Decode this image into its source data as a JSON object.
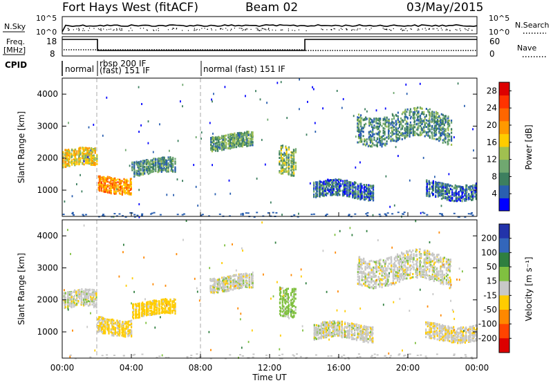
{
  "header": {
    "station": "Fort Hays West (fitACF)",
    "beam": "Beam 02",
    "date": "03/May/2015"
  },
  "top_panels": {
    "nsky_label": "N.Sky",
    "nsearch_label": "N.Search",
    "freq_label_1": "Freq.",
    "freq_label_2": "[MHz]",
    "nave_label": "Nave",
    "cpid_label": "CPID",
    "left_ticks_counts": [
      "10^5",
      "10^0"
    ],
    "right_ticks_counts": [
      "10^5",
      "10^0"
    ],
    "freq_ticks": [
      "18",
      "8"
    ],
    "nave_ticks": [
      "60",
      "0"
    ],
    "cpid_segments": [
      {
        "label": "normal",
        "start_hour": 0,
        "end_hour": 2
      },
      {
        "label": "rbsp 200 IF",
        "label2": "(fast) 151 IF",
        "start_hour": 2,
        "end_hour": 8
      },
      {
        "label": "normal (fast) 151 IF",
        "start_hour": 8,
        "end_hour": 24
      }
    ]
  },
  "chart_data": [
    {
      "type": "heatmap",
      "name": "power",
      "ylabel": "Slant Range [km]",
      "yticks": [
        "1000",
        "2000",
        "3000",
        "4000"
      ],
      "ylim": [
        180,
        4500
      ],
      "colorbar_label": "Power [dB]",
      "colorbar_ticks": [
        "4",
        "8",
        "12",
        "16",
        "20",
        "24",
        "28"
      ],
      "colorbar_range": [
        0,
        30
      ],
      "colorbar_colors": [
        "#0000ff",
        "#2a5fb0",
        "#3d7f5f",
        "#70a870",
        "#a0c050",
        "#ffcc00",
        "#ff9900",
        "#ff6600",
        "#ff3300",
        "#dd0000"
      ],
      "bands": [
        {
          "t": [
            0,
            2
          ],
          "r": [
            1700,
            2300
          ],
          "level": 16
        },
        {
          "t": [
            2,
            4
          ],
          "r": [
            950,
            1500
          ],
          "level": 20
        },
        {
          "t": [
            4,
            6.5
          ],
          "r": [
            1500,
            2000
          ],
          "level": 8
        },
        {
          "t": [
            8.5,
            11
          ],
          "r": [
            2300,
            2800
          ],
          "level": 10
        },
        {
          "t": [
            12.5,
            13.5
          ],
          "r": [
            1600,
            2600
          ],
          "level": 12
        },
        {
          "t": [
            14.5,
            18
          ],
          "r": [
            750,
            1300
          ],
          "level": 6
        },
        {
          "t": [
            17,
            22.5
          ],
          "r": [
            2500,
            3500
          ],
          "level": 8
        },
        {
          "t": [
            21,
            24
          ],
          "r": [
            750,
            1300
          ],
          "level": 6
        }
      ]
    },
    {
      "type": "heatmap",
      "name": "velocity",
      "ylabel": "Slant Range [km]",
      "yticks": [
        "1000",
        "2000",
        "3000",
        "4000"
      ],
      "ylim": [
        180,
        4500
      ],
      "xlabel": "Time UT",
      "xticks": [
        "00:00",
        "04:00",
        "08:00",
        "12:00",
        "16:00",
        "20:00",
        "00:00"
      ],
      "xlim": [
        0,
        24
      ],
      "colorbar_label": "Velocity [m s⁻¹]",
      "colorbar_ticks": [
        "200",
        "100",
        "50",
        "15",
        "-15",
        "-50",
        "-100",
        "-200"
      ],
      "colorbar_colors": [
        "#2233aa",
        "#3366bb",
        "#2f7f3f",
        "#80c040",
        "#c8c8c8",
        "#ffcc00",
        "#ff8800",
        "#ff4400",
        "#dd0000"
      ],
      "bands": [
        {
          "t": [
            0,
            2
          ],
          "r": [
            1700,
            2300
          ],
          "v": 0
        },
        {
          "t": [
            2,
            4
          ],
          "r": [
            950,
            1500
          ],
          "v": -20
        },
        {
          "t": [
            4,
            6.5
          ],
          "r": [
            1500,
            2000
          ],
          "v": -30
        },
        {
          "t": [
            8.5,
            11
          ],
          "r": [
            2300,
            2800
          ],
          "v": 0
        },
        {
          "t": [
            12.5,
            13.5
          ],
          "r": [
            1600,
            2600
          ],
          "v": 30
        },
        {
          "t": [
            14.5,
            18
          ],
          "r": [
            750,
            1300
          ],
          "v": 0
        },
        {
          "t": [
            17,
            22.5
          ],
          "r": [
            2500,
            3500
          ],
          "v": 0
        },
        {
          "t": [
            21,
            24
          ],
          "r": [
            750,
            1300
          ],
          "v": -5
        }
      ]
    }
  ]
}
